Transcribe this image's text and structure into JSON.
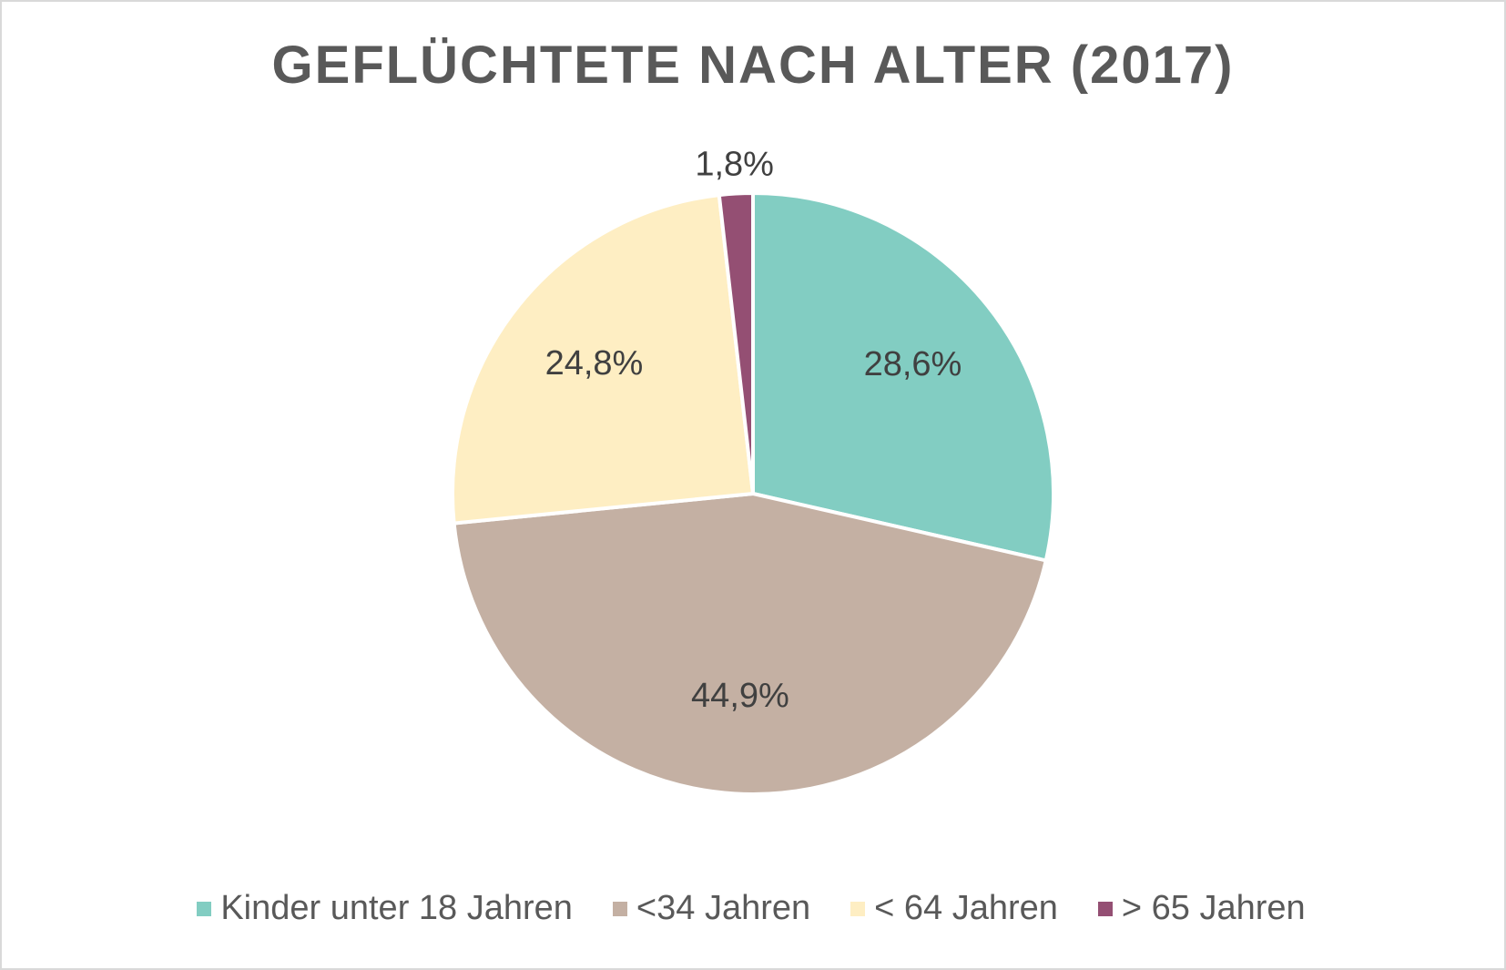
{
  "chart_data": {
    "type": "pie",
    "title": "GEFLÜCHTETE  NACH ALTER (2017)",
    "categories": [
      "Kinder unter 18 Jahren",
      "<34 Jahren",
      "< 64 Jahren",
      "> 65 Jahren"
    ],
    "values": [
      28.6,
      44.9,
      24.8,
      1.8
    ],
    "data_labels": [
      "28,6%",
      "44,9%",
      "24,8%",
      "1,8%"
    ],
    "colors": [
      "#82cdc2",
      "#c4b0a3",
      "#feeec3",
      "#944f73"
    ],
    "unit": "%",
    "legend": "bottom"
  }
}
